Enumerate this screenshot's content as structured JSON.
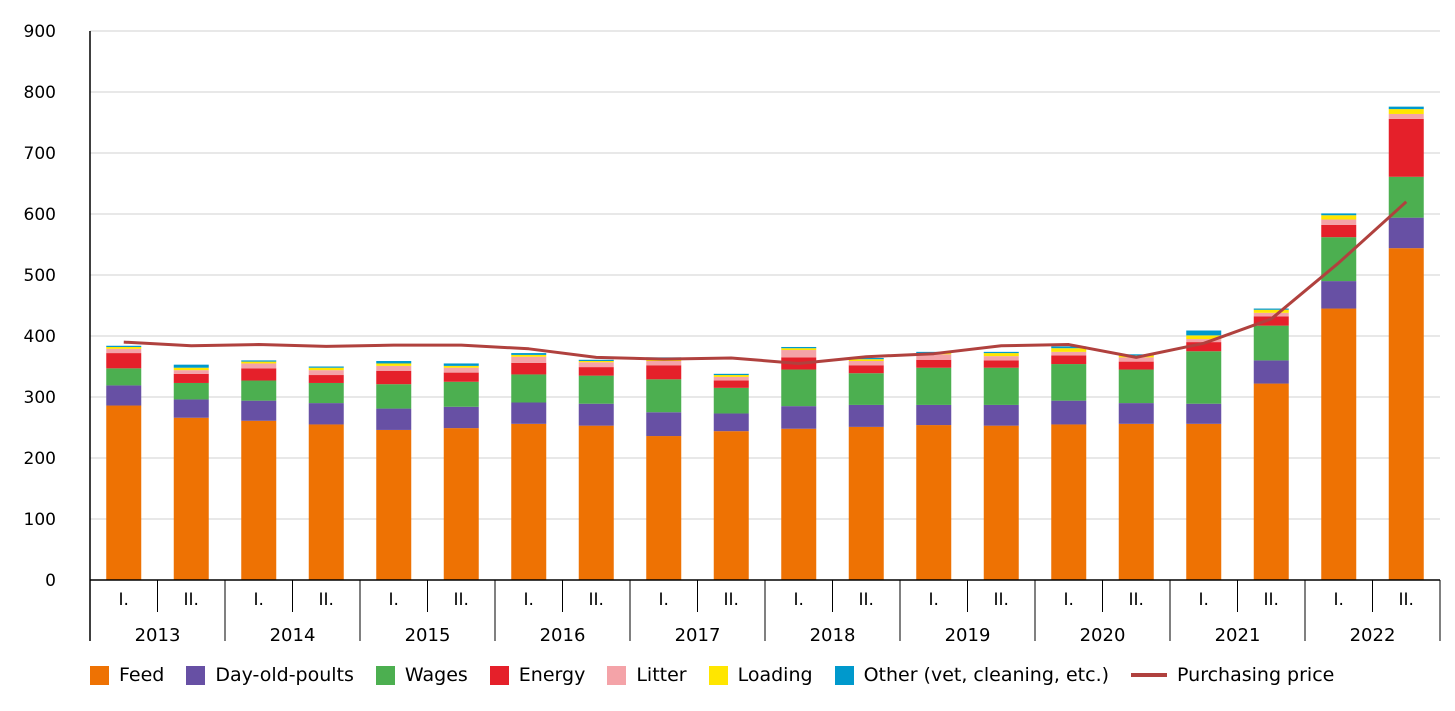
{
  "chart_data": {
    "type": "bar",
    "stacked": true,
    "ylim": [
      0,
      900
    ],
    "yticks": [
      0,
      100,
      200,
      300,
      400,
      500,
      600,
      700,
      800,
      900
    ],
    "grid": true,
    "legend_position": "bottom",
    "years": [
      "2013",
      "2014",
      "2015",
      "2016",
      "2017",
      "2018",
      "2019",
      "2020",
      "2021",
      "2022"
    ],
    "halves": [
      "I.",
      "II."
    ],
    "colors": {
      "Feed": "#EE7203",
      "Day-old-poults": "#6750A4",
      "Wages": "#4CAF50",
      "Energy": "#E5202A",
      "Litter": "#F4A3A8",
      "Loading": "#FFE600",
      "Other (vet, cleaning, etc.)": "#0099CC",
      "Purchasing price": "#B0413E",
      "grid": "#d0d0d0",
      "axis": "#000000"
    },
    "series": [
      {
        "name": "Feed",
        "values": [
          286,
          266,
          261,
          255,
          246,
          249,
          256,
          253,
          236,
          244,
          248,
          251,
          254,
          253,
          255,
          256,
          256,
          322,
          445,
          544
        ]
      },
      {
        "name": "Day-old-poults",
        "values": [
          33,
          30,
          33,
          35,
          35,
          35,
          35,
          36,
          39,
          29,
          37,
          36,
          33,
          34,
          39,
          34,
          33,
          38,
          45,
          50
        ]
      },
      {
        "name": "Wages",
        "values": [
          28,
          27,
          33,
          33,
          40,
          41,
          46,
          46,
          54,
          42,
          60,
          52,
          61,
          61,
          60,
          55,
          86,
          57,
          72,
          67
        ]
      },
      {
        "name": "Energy",
        "values": [
          25,
          15,
          20,
          13,
          22,
          15,
          19,
          14,
          23,
          12,
          20,
          13,
          13,
          12,
          14,
          13,
          15,
          15,
          20,
          95
        ]
      },
      {
        "name": "Litter",
        "values": [
          7,
          6,
          8,
          8,
          8,
          8,
          10,
          8,
          7,
          6,
          12,
          7,
          9,
          7,
          6,
          7,
          5,
          6,
          9,
          8
        ]
      },
      {
        "name": "Loading",
        "values": [
          3,
          4,
          3,
          4,
          4,
          3,
          3,
          2,
          4,
          3,
          3,
          3,
          2,
          5,
          6,
          3,
          6,
          5,
          7,
          8
        ]
      },
      {
        "name": "Other (vet, cleaning, etc.)",
        "values": [
          2,
          5,
          2,
          2,
          4,
          4,
          3,
          2,
          2,
          2,
          2,
          2,
          2,
          2,
          3,
          2,
          8,
          2,
          3,
          4
        ]
      }
    ],
    "line": {
      "name": "Purchasing price",
      "values": [
        390,
        384,
        386,
        383,
        385,
        385,
        379,
        365,
        362,
        364,
        355,
        366,
        371,
        384,
        386,
        365,
        388,
        428,
        520,
        620
      ]
    }
  }
}
